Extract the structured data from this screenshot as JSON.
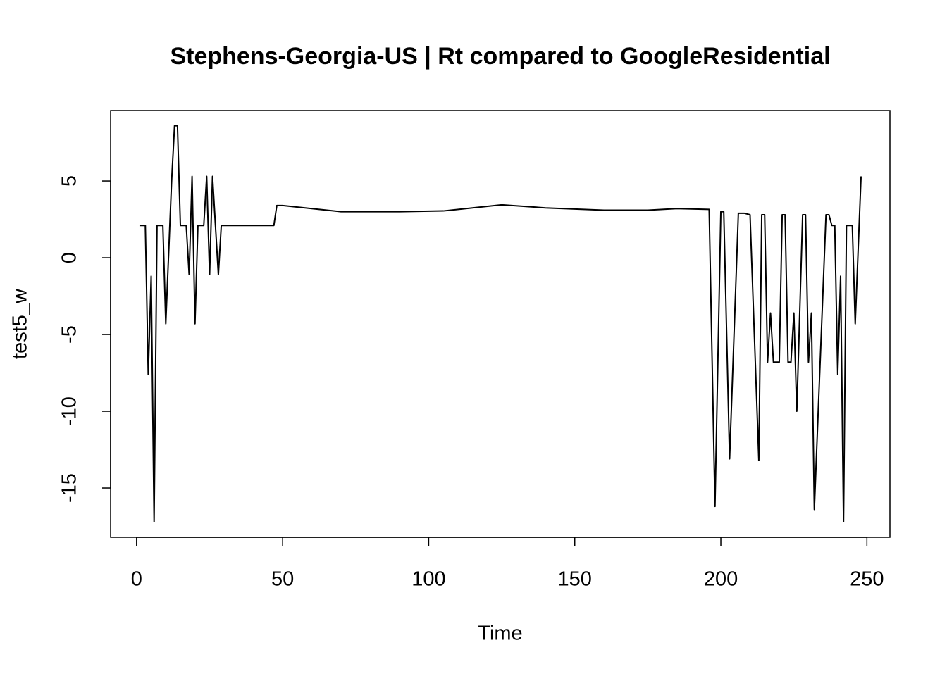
{
  "chart_data": {
    "type": "line",
    "title": "Stephens-Georgia-US | Rt compared to GoogleResidential",
    "xlabel": "Time",
    "ylabel": "test5_w",
    "x": [
      1,
      3,
      4,
      5,
      6,
      7,
      9,
      10,
      12,
      13,
      14,
      15,
      17,
      18,
      19,
      20,
      21,
      23,
      24,
      25,
      26,
      27,
      28,
      29,
      47,
      48,
      50,
      60,
      70,
      90,
      105,
      115,
      125,
      140,
      160,
      175,
      185,
      196,
      198,
      200,
      201,
      203,
      206,
      208,
      210,
      213,
      214,
      215,
      216,
      217,
      218,
      220,
      221,
      222,
      223,
      224,
      225,
      226,
      228,
      229,
      230,
      231,
      232,
      236,
      237,
      238,
      239,
      240,
      241,
      242,
      243,
      245,
      246,
      248
    ],
    "values": [
      2.1,
      2.1,
      -7.6,
      -1.2,
      -17.2,
      2.1,
      2.1,
      -4.3,
      5.0,
      8.6,
      8.6,
      2.1,
      2.1,
      -1.1,
      5.3,
      -4.3,
      2.1,
      2.1,
      5.3,
      -1.1,
      5.3,
      2.1,
      -1.1,
      2.1,
      2.1,
      3.4,
      3.4,
      3.2,
      3.0,
      3.0,
      3.05,
      3.25,
      3.45,
      3.25,
      3.1,
      3.1,
      3.2,
      3.15,
      -16.2,
      3.0,
      3.0,
      -13.1,
      2.9,
      2.9,
      2.8,
      -13.2,
      2.8,
      2.8,
      -6.8,
      -3.6,
      -6.8,
      -6.8,
      2.8,
      2.8,
      -6.8,
      -6.8,
      -3.6,
      -10.0,
      2.8,
      2.8,
      -6.8,
      -3.6,
      -16.4,
      2.8,
      2.8,
      2.1,
      2.1,
      -7.6,
      -1.2,
      -17.2,
      2.1,
      2.1,
      -4.3,
      5.3
    ],
    "color": "#000000",
    "xlim": [
      -8.88,
      257.88
    ],
    "xticks": [
      0,
      50,
      100,
      150,
      200,
      250
    ],
    "ylim": [
      -18.21,
      9.59
    ],
    "yticks": [
      -15,
      -10,
      -5,
      0,
      5
    ]
  }
}
